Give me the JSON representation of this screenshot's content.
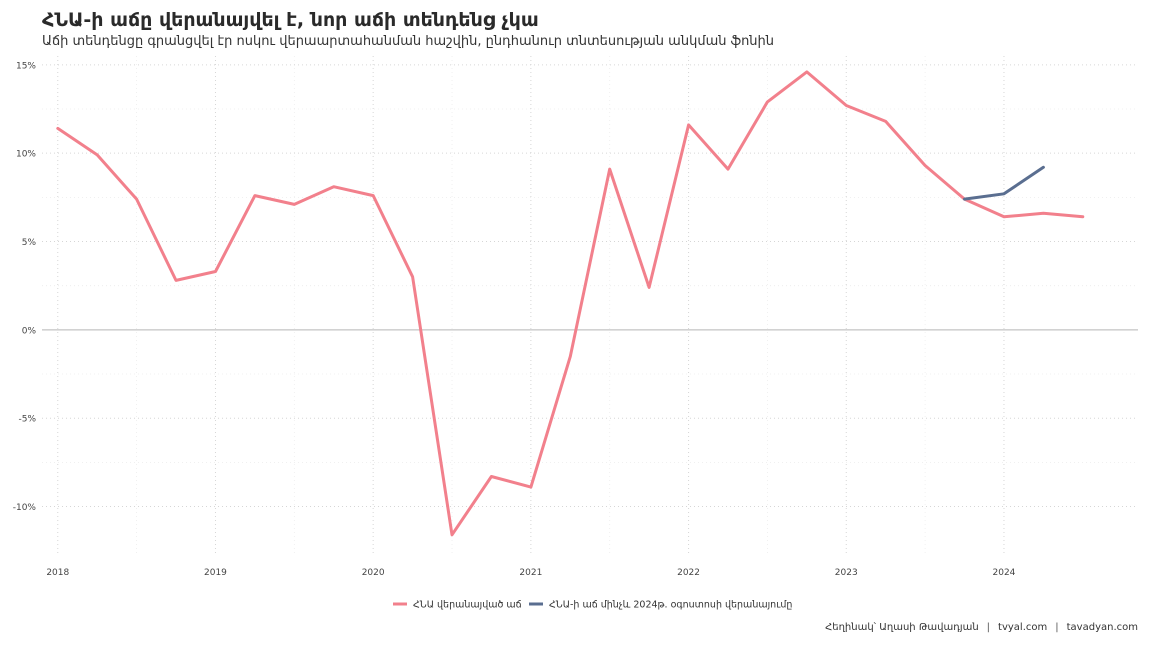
{
  "title": "ՀՆԱ-ի աճը վերանայվել է, նոր աճի տենդենց չկա",
  "subtitle": "Աճի տենդենցը գրանցվել էր ոսկու վերաարտահանման հաշվին, ընդհանուր տնտեսության անկման ֆոնին",
  "caption": {
    "source": "Հեղինակ՝ Աղասի Թավադյան",
    "site1": "tvyal.com",
    "site2": "tavadyan.com",
    "separator": "|"
  },
  "chart_data": {
    "type": "line",
    "xlabel": "",
    "ylabel": "",
    "x_ticks": [
      "2018",
      "2019",
      "2020",
      "2021",
      "2022",
      "2023",
      "2024"
    ],
    "y_ticks": [
      -10,
      -5,
      0,
      5,
      10,
      15
    ],
    "y_tick_labels": [
      "-10%",
      "-5%",
      "0%",
      "5%",
      "10%",
      "15%"
    ],
    "xlim": [
      2017.9,
      2024.85
    ],
    "ylim": [
      -12.8,
      15.5
    ],
    "grid": true,
    "legend_position": "bottom",
    "series": [
      {
        "name": "ՀՆԱ վերանայված աճ",
        "color": "#f2808c",
        "x": [
          2018.0,
          2018.25,
          2018.5,
          2018.75,
          2019.0,
          2019.25,
          2019.5,
          2019.75,
          2020.0,
          2020.25,
          2020.5,
          2020.75,
          2021.0,
          2021.25,
          2021.5,
          2021.75,
          2022.0,
          2022.25,
          2022.5,
          2022.75,
          2023.0,
          2023.25,
          2023.5,
          2023.75,
          2024.0,
          2024.25,
          2024.5
        ],
        "values": [
          11.4,
          9.9,
          7.4,
          2.8,
          3.3,
          7.6,
          7.1,
          8.1,
          7.6,
          3.0,
          -11.6,
          -8.3,
          -8.9,
          -1.5,
          9.1,
          2.4,
          11.6,
          9.1,
          12.9,
          14.6,
          12.7,
          11.8,
          9.3,
          7.4,
          6.4,
          6.6,
          6.4
        ]
      },
      {
        "name": "ՀՆԱ-ի աճ մինչև 2024թ. օգոստոսի վերանայումը",
        "color": "#5a6e90",
        "x": [
          2023.75,
          2024.0,
          2024.25
        ],
        "values": [
          7.4,
          7.7,
          9.2
        ]
      }
    ]
  }
}
